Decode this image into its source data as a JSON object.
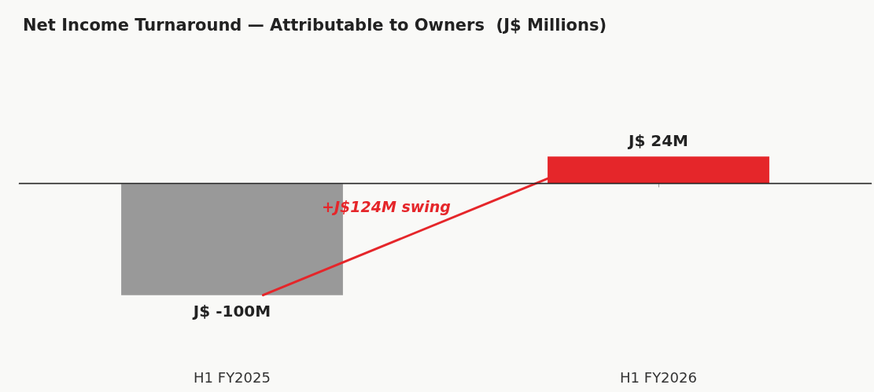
{
  "chart_data": {
    "type": "bar",
    "title": "Net Income Turnaround — Attributable to Owners  (J$ Millions)",
    "categories": [
      "H1 FY2025",
      "H1 FY2026"
    ],
    "values": [
      -100,
      24
    ],
    "colors": [
      "#999999",
      "#e5262a"
    ],
    "value_labels": [
      "J$ -100M",
      "J$ 24M"
    ],
    "annotations": [
      "+J$124M swing"
    ]
  }
}
